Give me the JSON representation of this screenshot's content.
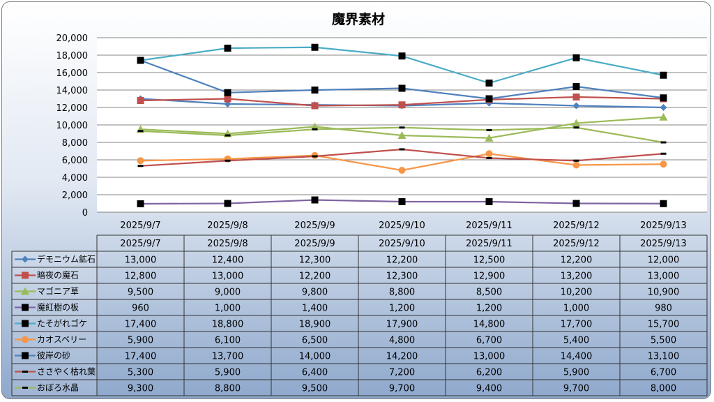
{
  "chart_data": {
    "type": "line",
    "title": "魔界素材",
    "xlabel": "",
    "ylabel": "",
    "ylim": [
      0,
      20000
    ],
    "yticks": [
      "0",
      "2,000",
      "4,000",
      "6,000",
      "8,000",
      "10,000",
      "12,000",
      "14,000",
      "16,000",
      "18,000",
      "20,000"
    ],
    "grid": true,
    "legend": "data-table-left",
    "categories": [
      "2025/9/7",
      "2025/9/8",
      "2025/9/9",
      "2025/9/10",
      "2025/9/11",
      "2025/9/12",
      "2025/9/13"
    ],
    "series": [
      {
        "name": "デモニウム鉱石",
        "color": "#4f81bd",
        "marker": "diamond",
        "values": [
          13000,
          12400,
          12300,
          12200,
          12500,
          12200,
          12000
        ],
        "labels": [
          "13,000",
          "12,400",
          "12,300",
          "12,200",
          "12,500",
          "12,200",
          "12,000"
        ]
      },
      {
        "name": "暗夜の魔石",
        "color": "#c0504d",
        "marker": "square",
        "values": [
          12800,
          13000,
          12200,
          12300,
          12900,
          13200,
          13000
        ],
        "labels": [
          "12,800",
          "13,000",
          "12,200",
          "12,300",
          "12,900",
          "13,200",
          "13,000"
        ]
      },
      {
        "name": "マゴニア草",
        "color": "#9bbb59",
        "marker": "triangle",
        "values": [
          9500,
          9000,
          9800,
          8800,
          8500,
          10200,
          10900
        ],
        "labels": [
          "9,500",
          "9,000",
          "9,800",
          "8,800",
          "8,500",
          "10,200",
          "10,900"
        ]
      },
      {
        "name": "魔紅樹の板",
        "color": "#8064a2",
        "marker": "square-black",
        "values": [
          960,
          1000,
          1400,
          1200,
          1200,
          1000,
          980
        ],
        "labels": [
          "960",
          "1,000",
          "1,400",
          "1,200",
          "1,200",
          "1,000",
          "980"
        ]
      },
      {
        "name": "たそがれゴケ",
        "color": "#4bacc6",
        "marker": "square-black",
        "values": [
          17400,
          18800,
          18900,
          17900,
          14800,
          17700,
          15700
        ],
        "labels": [
          "17,400",
          "18,800",
          "18,900",
          "17,900",
          "14,800",
          "17,700",
          "15,700"
        ]
      },
      {
        "name": "カオスベリー",
        "color": "#f79646",
        "marker": "circle",
        "values": [
          5900,
          6100,
          6500,
          4800,
          6700,
          5400,
          5500
        ],
        "labels": [
          "5,900",
          "6,100",
          "6,500",
          "4,800",
          "6,700",
          "5,400",
          "5,500"
        ]
      },
      {
        "name": "彼岸の砂",
        "color": "#4f81bd",
        "marker": "square-black",
        "values": [
          17400,
          13700,
          14000,
          14200,
          13000,
          14400,
          13100
        ],
        "labels": [
          "17,400",
          "13,700",
          "14,000",
          "14,200",
          "13,000",
          "14,400",
          "13,100"
        ]
      },
      {
        "name": "ささやく枯れ葉",
        "color": "#c0504d",
        "marker": "dash-black",
        "values": [
          5300,
          5900,
          6400,
          7200,
          6200,
          5900,
          6700
        ],
        "labels": [
          "5,300",
          "5,900",
          "6,400",
          "7,200",
          "6,200",
          "5,900",
          "6,700"
        ]
      },
      {
        "name": "おぼろ水晶",
        "color": "#9bbb59",
        "marker": "dash-black",
        "values": [
          9300,
          8800,
          9500,
          9700,
          9400,
          9700,
          8000
        ],
        "labels": [
          "9,300",
          "8,800",
          "9,500",
          "9,700",
          "9,400",
          "9,700",
          "8,000"
        ]
      }
    ]
  }
}
